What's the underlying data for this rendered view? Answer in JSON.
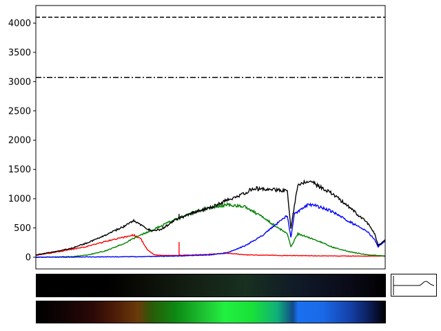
{
  "chart_data": {
    "type": "line",
    "title": "",
    "xlabel": "",
    "ylabel": "",
    "xlim": [
      0,
      1
    ],
    "ylim": [
      -200,
      4300
    ],
    "yticks": [
      0,
      500,
      1000,
      1500,
      2000,
      2500,
      3000,
      3500,
      4000
    ],
    "xticks": [],
    "grid": false,
    "legend": "none",
    "reference_lines": [
      {
        "y": 4100,
        "style": "dashed",
        "color": "#000000"
      },
      {
        "y": 3070,
        "style": "dashdot",
        "color": "#000000"
      }
    ],
    "series": [
      {
        "color": "#ff0000",
        "x": [
          0,
          0.05,
          0.1,
          0.15,
          0.2,
          0.25,
          0.28,
          0.3,
          0.32,
          0.34,
          0.36,
          0.4,
          0.5,
          0.55,
          0.6,
          0.7,
          0.8,
          0.9,
          1.0
        ],
        "y": [
          30,
          80,
          130,
          190,
          270,
          340,
          380,
          320,
          120,
          40,
          30,
          30,
          50,
          70,
          40,
          30,
          25,
          20,
          20
        ],
        "spikes": [
          {
            "x": 0.41,
            "y": 260
          }
        ]
      },
      {
        "color": "#008000",
        "x": [
          0,
          0.1,
          0.15,
          0.2,
          0.25,
          0.3,
          0.35,
          0.4,
          0.45,
          0.5,
          0.55,
          0.6,
          0.65,
          0.7,
          0.72,
          0.73,
          0.75,
          0.8,
          0.85,
          0.9,
          0.95,
          1.0
        ],
        "y": [
          0,
          10,
          40,
          110,
          230,
          380,
          510,
          650,
          760,
          850,
          900,
          860,
          680,
          480,
          400,
          180,
          400,
          300,
          170,
          90,
          40,
          20
        ]
      },
      {
        "color": "#0000ff",
        "x": [
          0,
          0.3,
          0.4,
          0.5,
          0.55,
          0.6,
          0.65,
          0.7,
          0.72,
          0.73,
          0.74,
          0.78,
          0.8,
          0.85,
          0.9,
          0.95,
          0.97,
          0.98,
          1.0
        ],
        "y": [
          0,
          10,
          20,
          40,
          80,
          200,
          380,
          620,
          720,
          330,
          740,
          900,
          880,
          780,
          600,
          430,
          300,
          180,
          280
        ]
      },
      {
        "color": "#000000",
        "x": [
          0,
          0.05,
          0.1,
          0.15,
          0.2,
          0.25,
          0.28,
          0.3,
          0.33,
          0.36,
          0.4,
          0.45,
          0.5,
          0.55,
          0.6,
          0.62,
          0.65,
          0.7,
          0.72,
          0.73,
          0.75,
          0.78,
          0.8,
          0.85,
          0.9,
          0.95,
          0.97,
          0.98,
          1.0
        ],
        "y": [
          40,
          90,
          150,
          250,
          380,
          520,
          620,
          560,
          450,
          480,
          640,
          760,
          850,
          980,
          1100,
          1180,
          1160,
          1150,
          1130,
          500,
          1250,
          1300,
          1250,
          1080,
          840,
          580,
          400,
          200,
          300
        ],
        "spikes": [
          {
            "x": 0.41,
            "y": 740
          }
        ]
      }
    ]
  },
  "strips": [
    {
      "name": "raw-spectrum-strip"
    },
    {
      "name": "color-spectrum-strip"
    }
  ]
}
